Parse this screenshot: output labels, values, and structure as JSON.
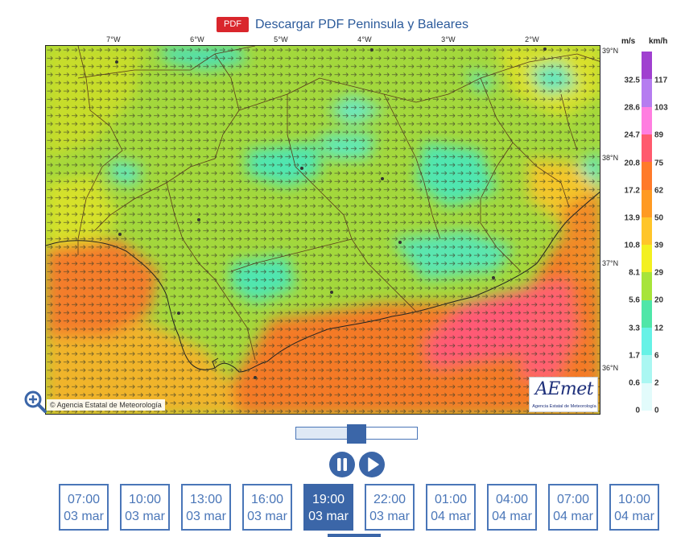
{
  "header": {
    "pdf_badge": "PDF",
    "title": "Descargar PDF Peninsula y Baleares"
  },
  "map": {
    "lon_labels": [
      "7°W",
      "6°W",
      "5°W",
      "4°W",
      "3°W",
      "2°W"
    ],
    "lat_labels": [
      "39°N",
      "38°N",
      "37°N",
      "36°N"
    ],
    "copyright": "Agencia Estatal de Meteorología",
    "logo_text": "AEmet",
    "logo_subtitle": "Agencia Estatal de Meteorología"
  },
  "legend": {
    "unit_ms": "m/s",
    "unit_kmh": "km/h",
    "ms_values": [
      "32.5",
      "28.6",
      "24.7",
      "20.8",
      "17.2",
      "13.9",
      "10.8",
      "8.1",
      "5.6",
      "3.3",
      "1.7",
      "0.6",
      "0"
    ],
    "kmh_values": [
      "117",
      "103",
      "89",
      "75",
      "62",
      "50",
      "39",
      "29",
      "20",
      "12",
      "6",
      "2",
      "0"
    ],
    "colors": [
      "#a040d0",
      "#b57cf0",
      "#ff7ee0",
      "#ff5a6e",
      "#ff7a2a",
      "#ff9a22",
      "#ffc52a",
      "#f3f020",
      "#a7e43a",
      "#4fe6a8",
      "#66f2e6",
      "#aaf7f2",
      "#e2fbfb"
    ]
  },
  "slider": {
    "position": 0.5
  },
  "controls": {
    "pause_icon": "pause-icon",
    "play_icon": "play-icon"
  },
  "times": [
    {
      "time": "07:00",
      "date": "03 mar",
      "active": false
    },
    {
      "time": "10:00",
      "date": "03 mar",
      "active": false
    },
    {
      "time": "13:00",
      "date": "03 mar",
      "active": false
    },
    {
      "time": "16:00",
      "date": "03 mar",
      "active": false
    },
    {
      "time": "19:00",
      "date": "03 mar",
      "active": true
    },
    {
      "time": "22:00",
      "date": "03 mar",
      "active": false
    },
    {
      "time": "01:00",
      "date": "04 mar",
      "active": false
    },
    {
      "time": "04:00",
      "date": "04 mar",
      "active": false
    },
    {
      "time": "07:00",
      "date": "04 mar",
      "active": false
    },
    {
      "time": "10:00",
      "date": "04 mar",
      "active": false
    }
  ]
}
